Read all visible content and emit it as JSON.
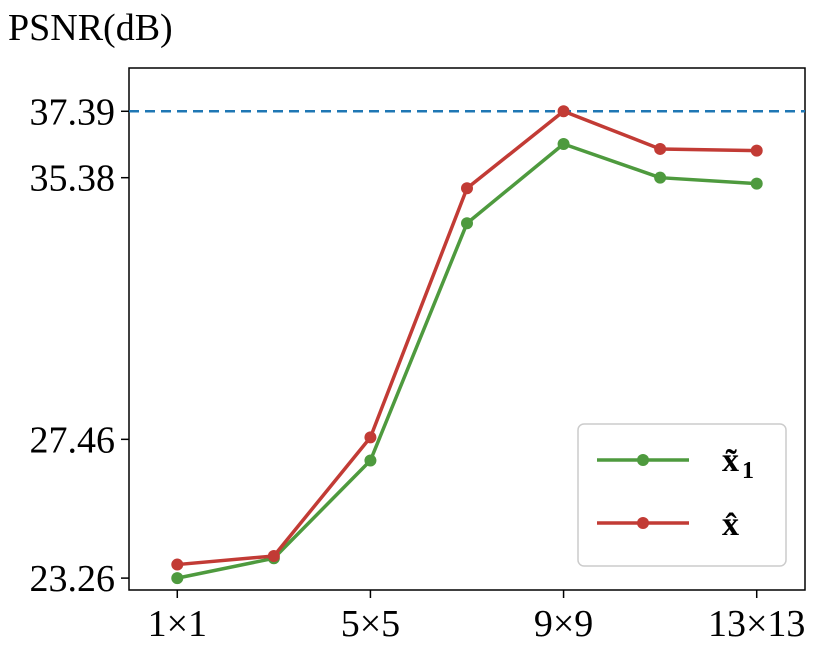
{
  "chart_data": {
    "type": "line",
    "ylabel": "PSNR(dB)",
    "xlabel": "",
    "x_positions": [
      1,
      3,
      5,
      7,
      9,
      11,
      13
    ],
    "x_tick_values": [
      1,
      5,
      9,
      13
    ],
    "x_tick_labels": [
      "1×1",
      "5×5",
      "9×9",
      "13×13"
    ],
    "xlim": [
      0,
      14
    ],
    "y_tick_values": [
      23.26,
      27.46,
      35.38,
      37.39
    ],
    "y_tick_labels": [
      "23.26",
      "27.46",
      "35.38",
      "37.39"
    ],
    "ylim": [
      22.9,
      38.7
    ],
    "reference_line": {
      "y": 37.39,
      "style": "dashed",
      "color": "#1f77b4"
    },
    "series": [
      {
        "name": "x̃1",
        "color": "#4e9a3e",
        "values": [
          23.26,
          23.86,
          26.82,
          34.0,
          36.4,
          35.38,
          35.2
        ]
      },
      {
        "name": "x̂",
        "color": "#c23b35",
        "values": [
          23.67,
          23.93,
          27.52,
          35.06,
          37.39,
          36.25,
          36.2
        ]
      }
    ],
    "legend": {
      "position": "bottom-right",
      "entries": [
        {
          "label": "x̃",
          "subscript": "1",
          "color": "#4e9a3e"
        },
        {
          "label": "x̂",
          "subscript": "",
          "color": "#c23b35"
        }
      ]
    },
    "grid": false
  }
}
